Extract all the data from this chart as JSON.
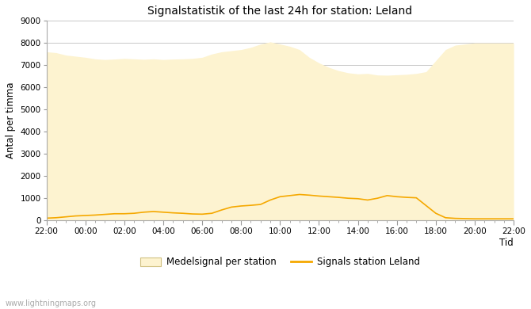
{
  "title": "Signalstatistik of the last 24h for station: Leland",
  "xlabel": "Tid",
  "ylabel": "Antal per timma",
  "ylim": [
    0,
    9000
  ],
  "yticks": [
    0,
    1000,
    2000,
    3000,
    4000,
    5000,
    6000,
    7000,
    8000,
    9000
  ],
  "xtick_labels": [
    "22:00",
    "00:00",
    "02:00",
    "04:00",
    "06:00",
    "08:00",
    "10:00",
    "12:00",
    "14:00",
    "16:00",
    "18:00",
    "20:00",
    "22:00"
  ],
  "background_color": "#ffffff",
  "fill_color": "#fdf3d0",
  "line_color": "#f5a800",
  "watermark": "www.lightningmaps.org",
  "legend_fill_label": "Medelsignal per station",
  "legend_line_label": "Signals station Leland",
  "fill_y": [
    7600,
    7560,
    7450,
    7400,
    7350,
    7280,
    7250,
    7270,
    7300,
    7280,
    7260,
    7280,
    7250,
    7270,
    7280,
    7300,
    7350,
    7500,
    7600,
    7650,
    7700,
    7800,
    7950,
    8050,
    7950,
    7850,
    7700,
    7350,
    7100,
    6900,
    6750,
    6650,
    6600,
    6620,
    6550,
    6540,
    6560,
    6580,
    6620,
    6700,
    7200,
    7700,
    7900,
    7950,
    8000,
    8000,
    8000,
    8000,
    8000
  ],
  "line_y": [
    80,
    100,
    140,
    180,
    200,
    220,
    250,
    280,
    280,
    300,
    350,
    380,
    350,
    320,
    300,
    270,
    260,
    300,
    450,
    580,
    630,
    660,
    700,
    900,
    1050,
    1100,
    1150,
    1120,
    1080,
    1050,
    1020,
    980,
    960,
    900,
    980,
    1100,
    1050,
    1020,
    1000,
    650,
    300,
    100,
    70,
    60,
    50,
    50,
    50,
    50,
    50
  ]
}
